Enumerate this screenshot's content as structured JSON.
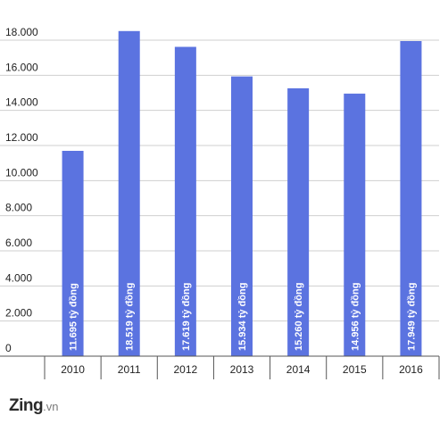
{
  "chart_data": {
    "type": "bar",
    "categories": [
      "2010",
      "2011",
      "2012",
      "2013",
      "2014",
      "2015",
      "2016"
    ],
    "values": [
      11695,
      18519,
      17619,
      15934,
      15260,
      14956,
      17949
    ],
    "data_labels": [
      "11.695 tỷ đồng",
      "18.519 tỷ đồng",
      "17.619 tỷ đồng",
      "15.934 tỷ đồng",
      "15.260 tỷ đồng",
      "14.956 tỷ đồng",
      "17.949 tỷ đồng"
    ],
    "y_ticks": [
      0,
      2000,
      4000,
      6000,
      8000,
      10000,
      12000,
      14000,
      16000,
      18000
    ],
    "y_tick_labels": [
      "0",
      "2.000",
      "4.000",
      "6.000",
      "8.000",
      "10.000",
      "12.000",
      "14.000",
      "16.000",
      "18.000"
    ],
    "ylim": [
      0,
      18000
    ],
    "grid": true,
    "legend": "none",
    "colors": {
      "bar": "#5b73e0",
      "grid": "#cfcfcf",
      "axis": "#555555",
      "label": "#ffffff"
    }
  },
  "logo": {
    "brand": "Zing",
    "domain": ".vn"
  }
}
